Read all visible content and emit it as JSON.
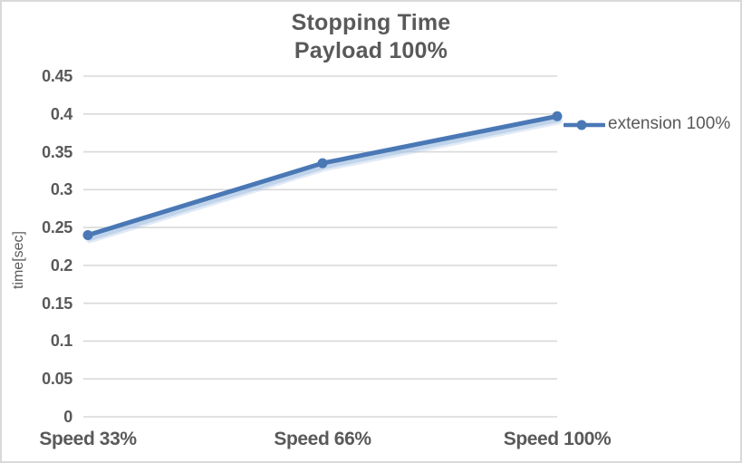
{
  "chart": {
    "legend": {
      "entry_label": "extension 100%"
    },
    "colors": {
      "line": "#4a78b5",
      "line_shadow": "#aac4e4",
      "grid": "#d9d9d9",
      "text": "#595959",
      "frame_border": "#d9d9d9",
      "background": "#ffffff"
    }
  },
  "chart_data": {
    "type": "line",
    "title": "Stopping Time",
    "subtitle": "Payload 100%",
    "categories": [
      "Speed 33%",
      "Speed 66%",
      "Speed 100%"
    ],
    "series": [
      {
        "name": "extension 100%",
        "values": [
          0.24,
          0.335,
          0.397
        ]
      }
    ],
    "xlabel": "",
    "ylabel": "time[sec]",
    "ylim": [
      0,
      0.45
    ],
    "ytick_step": 0.05,
    "ytick_labels": [
      "0.45",
      "0.4",
      "0.35",
      "0.3",
      "0.25",
      "0.2",
      "0.15",
      "0.1",
      "0.05",
      "0"
    ],
    "grid": true,
    "legend_position": "right",
    "marker": "circle"
  }
}
